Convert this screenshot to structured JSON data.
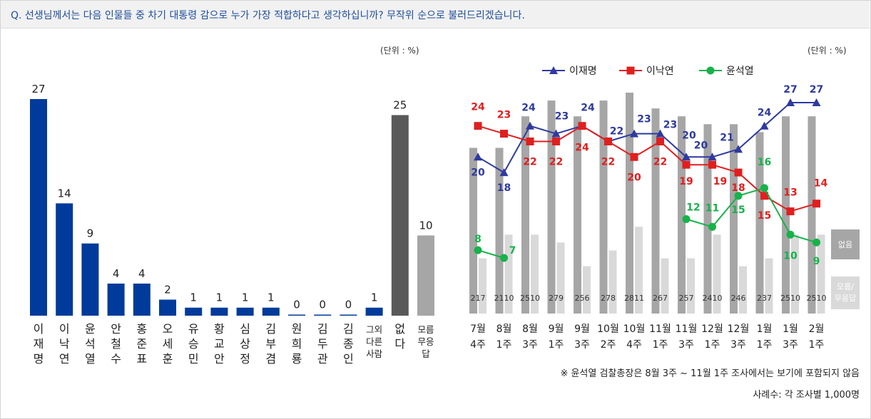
{
  "question": "Q. 선생님께서는 다음 인물들 중 차기 대통령 감으로 누가 가장 적합하다고 생각하십니까? 무작위 순으로 불러드리겠습니다.",
  "unit_label": "(단위 : %)",
  "note": "※ 윤석열 검찰총장은 8월 3주 ~ 11월 1주 조사에서는 보기에 포함되지 않음",
  "sample": "사례수: 각 조사별 1,000명",
  "colors": {
    "blue": "#003b9b",
    "dark_gray": "#595959",
    "light_gray": "#a6a6a6",
    "line_blue": "#2e3a9f",
    "line_red": "#e01f1f",
    "line_green": "#16b24a",
    "bar_gray": "#a6a6a6",
    "bar_light": "#d9d9d9"
  },
  "chart_data": [
    {
      "type": "bar",
      "categories": [
        "이재명",
        "이낙연",
        "윤석열",
        "안철수",
        "홍준표",
        "오세훈",
        "유승민",
        "황교안",
        "심상정",
        "김부겸",
        "원희룡",
        "김두관",
        "김종인",
        "그외 다른 사람",
        "없다",
        "모름 무응답"
      ],
      "values": [
        27,
        14,
        9,
        4,
        4,
        2,
        1,
        1,
        1,
        1,
        0,
        0,
        0,
        1,
        25,
        10
      ],
      "value_labels": [
        "27",
        "14",
        "9",
        "4",
        "4",
        "2",
        "1",
        "1",
        "1",
        "1",
        "0",
        "0",
        "0",
        "1",
        "25",
        "10"
      ],
      "tick_labels": [
        [
          "이",
          "재",
          "명"
        ],
        [
          "이",
          "낙",
          "연"
        ],
        [
          "윤",
          "석",
          "열"
        ],
        [
          "안",
          "철",
          "수"
        ],
        [
          "홍",
          "준",
          "표"
        ],
        [
          "오",
          "세",
          "훈"
        ],
        [
          "유",
          "승",
          "민"
        ],
        [
          "황",
          "교",
          "안"
        ],
        [
          "심",
          "상",
          "정"
        ],
        [
          "김",
          "부",
          "겸"
        ],
        [
          "원",
          "희",
          "룡"
        ],
        [
          "김",
          "두",
          "관"
        ],
        [
          "김",
          "종",
          "인"
        ],
        [
          "그외",
          "다른",
          "사람"
        ],
        [
          "없",
          "다"
        ],
        [
          "모름",
          "무응",
          "답"
        ]
      ],
      "bar_colors": [
        "blue",
        "blue",
        "blue",
        "blue",
        "blue",
        "blue",
        "blue",
        "blue",
        "blue",
        "blue",
        "blue",
        "blue",
        "blue",
        "blue",
        "dark_gray",
        "light_gray"
      ],
      "ylim": [
        0,
        30
      ]
    },
    {
      "type": "line",
      "x": [
        [
          "7월",
          "4주"
        ],
        [
          "8월",
          "1주"
        ],
        [
          "8월",
          "3주"
        ],
        [
          "9월",
          "1주"
        ],
        [
          "9월",
          "3주"
        ],
        [
          "10월",
          "2주"
        ],
        [
          "10월",
          "4주"
        ],
        [
          "11월",
          "1주"
        ],
        [
          "11월",
          "3주"
        ],
        [
          "12월",
          "1주"
        ],
        [
          "12월",
          "3주"
        ],
        [
          "1월",
          "1주"
        ],
        [
          "1월",
          "3주"
        ],
        [
          "2월",
          "1주"
        ]
      ],
      "series": [
        {
          "name": "이재명",
          "color": "line_blue",
          "marker": "triangle",
          "values": [
            20,
            18,
            24,
            23,
            24,
            22,
            23,
            23,
            20,
            20,
            21,
            24,
            27,
            27
          ],
          "labels": [
            "20",
            "18",
            "24",
            "23",
            "24",
            "22",
            "23",
            "23",
            "20",
            "20",
            "21",
            "24",
            "27",
            "27"
          ]
        },
        {
          "name": "이낙연",
          "color": "line_red",
          "marker": "square",
          "values": [
            24,
            23,
            22,
            22,
            24,
            22,
            20,
            22,
            19,
            19,
            18,
            15,
            13,
            14
          ],
          "labels": [
            "24",
            "23",
            "22",
            "22",
            "24",
            "22",
            "20",
            "22",
            "19",
            "19",
            "18",
            "15",
            "13",
            "14"
          ]
        },
        {
          "name": "윤석열",
          "color": "line_green",
          "marker": "circle",
          "values": [
            8,
            7,
            null,
            null,
            null,
            null,
            null,
            null,
            12,
            11,
            15,
            16,
            10,
            9
          ],
          "labels": [
            "8",
            "7",
            "",
            "",
            "",
            "",
            "",
            "",
            "12",
            "11",
            "15",
            "16",
            "10",
            "9"
          ]
        }
      ],
      "bars": [
        {
          "name": "없음",
          "values": [
            21,
            21,
            25,
            27,
            25,
            27,
            28,
            26,
            25,
            24,
            24,
            23,
            25,
            25
          ]
        },
        {
          "name": "모름/무응답",
          "values": [
            7,
            10,
            10,
            9,
            6,
            8,
            11,
            7,
            7,
            10,
            6,
            7,
            10,
            10
          ]
        }
      ],
      "bar_value_labels": [
        "217",
        "2110",
        "2510",
        "279",
        "256",
        "278",
        "2811",
        "267",
        "257",
        "2410",
        "246",
        "237",
        "2510",
        "2510"
      ],
      "bar_legend": [
        "없음",
        "모름/\n무응답"
      ],
      "ylim": [
        0,
        30
      ]
    }
  ]
}
